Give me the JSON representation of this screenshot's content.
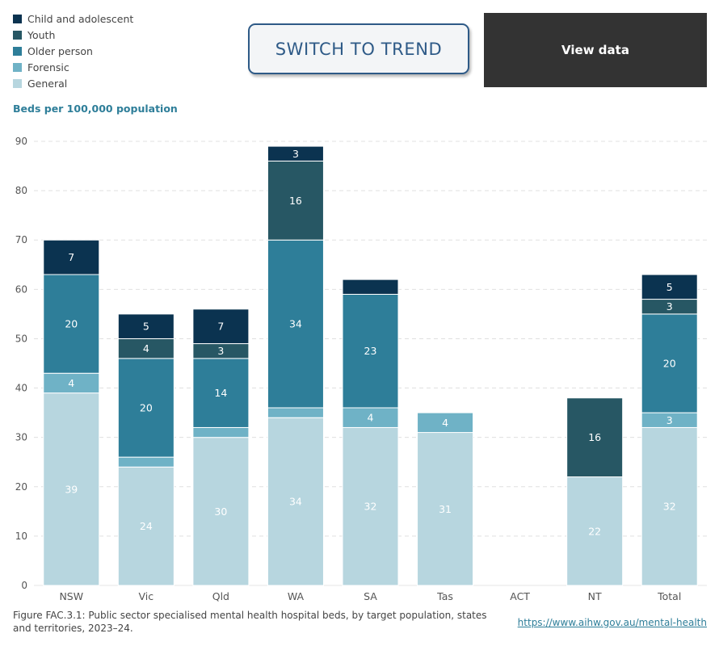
{
  "legend": {
    "items": [
      {
        "label": "Child and adolescent",
        "color": "#0b3350"
      },
      {
        "label": "Youth",
        "color": "#275764"
      },
      {
        "label": "Older person",
        "color": "#2e7e99"
      },
      {
        "label": "Forensic",
        "color": "#6fb2c6"
      },
      {
        "label": "General",
        "color": "#b7d6df"
      }
    ]
  },
  "controls": {
    "switch_label": "SWITCH TO TREND",
    "view_label": "View data"
  },
  "chart_data": {
    "type": "bar",
    "stacked": true,
    "ylabel": "Beds per 100,000 population",
    "ylim": [
      0,
      90
    ],
    "yticks": [
      0,
      10,
      20,
      30,
      40,
      50,
      60,
      70,
      80,
      90
    ],
    "grid": true,
    "legend_position": "top-left",
    "categories": [
      "NSW",
      "Vic",
      "Qld",
      "WA",
      "SA",
      "Tas",
      "ACT",
      "NT",
      "Total"
    ],
    "series": [
      {
        "name": "General",
        "color": "#b7d6df",
        "values": [
          39,
          24,
          30,
          34,
          32,
          31,
          0,
          22,
          32
        ],
        "labels": [
          "39",
          "24",
          "30",
          "34",
          "32",
          "31",
          "",
          "22",
          "32"
        ],
        "label_color": "#ffffff"
      },
      {
        "name": "Forensic",
        "color": "#6fb2c6",
        "values": [
          4,
          2,
          2,
          2,
          4,
          4,
          0,
          0,
          3
        ],
        "labels": [
          "4",
          "",
          "",
          "",
          "4",
          "4",
          "",
          "",
          "3"
        ],
        "label_color": "#ffffff"
      },
      {
        "name": "Older person",
        "color": "#2e7e99",
        "values": [
          20,
          20,
          14,
          34,
          23,
          0,
          0,
          0,
          20
        ],
        "labels": [
          "20",
          "20",
          "14",
          "34",
          "23",
          "",
          "",
          "",
          "20"
        ],
        "label_color": "#ffffff"
      },
      {
        "name": "Youth",
        "color": "#275764",
        "values": [
          0,
          4,
          3,
          16,
          0,
          0,
          0,
          16,
          3
        ],
        "labels": [
          "",
          "4",
          "3",
          "16",
          "",
          "",
          "",
          "16",
          "3"
        ],
        "label_color": "#ffffff"
      },
      {
        "name": "Child and adolescent",
        "color": "#0b3350",
        "values": [
          7,
          5,
          7,
          3,
          3,
          0,
          0,
          0,
          5
        ],
        "labels": [
          "7",
          "5",
          "7",
          "3",
          "",
          "",
          "",
          "",
          "5"
        ],
        "label_color": "#ffffff"
      }
    ]
  },
  "footer": {
    "caption": "Figure FAC.3.1: Public sector specialised mental health hospital beds, by target population, states and territories, 2023–24.",
    "link": "https://www.aihw.gov.au/mental-health"
  }
}
